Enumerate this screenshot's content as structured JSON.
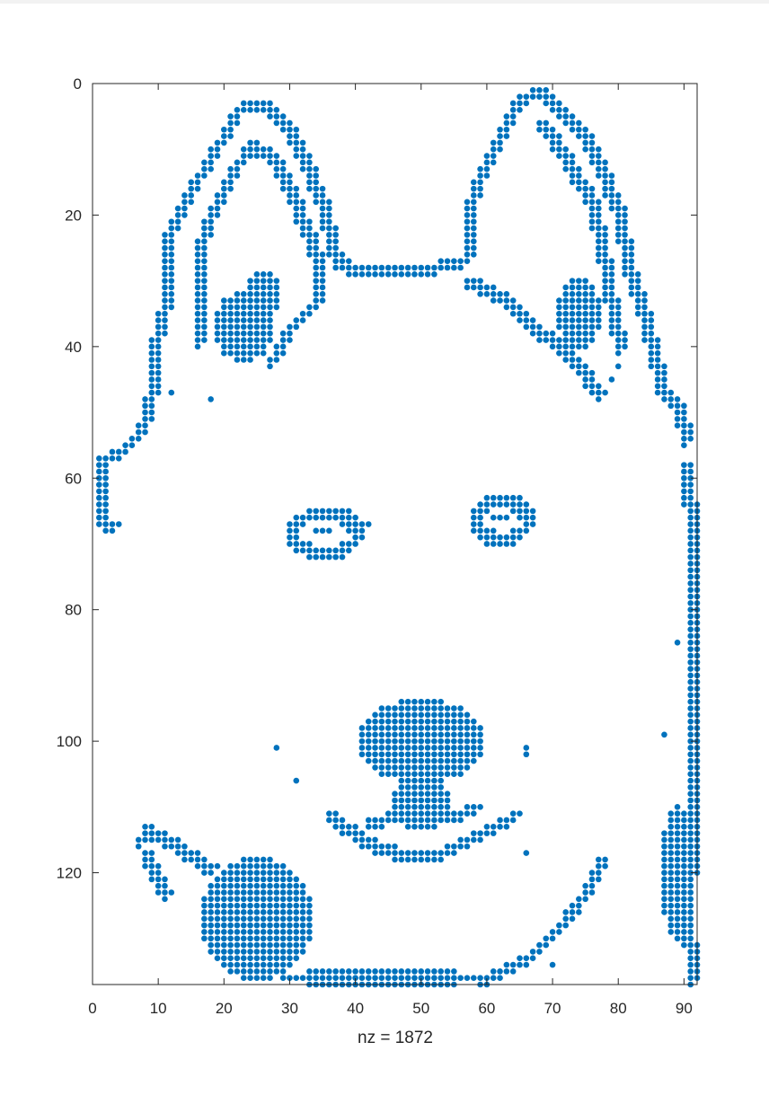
{
  "chart_data": {
    "type": "scatter",
    "plot": "spy",
    "title": "",
    "xlabel": "nz = 1872",
    "ylabel": "",
    "xlim": [
      0,
      92
    ],
    "ylim": [
      0,
      137
    ],
    "y_reversed": true,
    "x_ticks": [
      0,
      10,
      20,
      30,
      40,
      50,
      60,
      70,
      80,
      90
    ],
    "y_ticks": [
      0,
      20,
      40,
      60,
      80,
      100,
      120
    ],
    "x_tick_labels": [
      "0",
      "10",
      "20",
      "30",
      "40",
      "50",
      "60",
      "70",
      "80",
      "90"
    ],
    "y_tick_labels": [
      "0",
      "20",
      "40",
      "60",
      "80",
      "100",
      "120"
    ],
    "marker_color": "#0072BD",
    "axis_color": "#262626",
    "nz": 1872,
    "note": "Sparsity pattern forming a husky face; regions below are approximate outlines of the nonzero pattern (row = y, col = x).",
    "regions": [
      {
        "name": "left-ear-outer",
        "kind": "polyline",
        "points": [
          [
            1,
            57
          ],
          [
            5,
            55
          ],
          [
            8,
            51
          ],
          [
            9,
            44
          ],
          [
            9,
            40
          ],
          [
            11,
            32
          ],
          [
            11,
            24
          ],
          [
            13,
            19
          ],
          [
            16,
            14
          ],
          [
            19,
            9
          ],
          [
            21,
            5
          ],
          [
            23,
            3
          ],
          [
            26,
            3
          ],
          [
            29,
            6
          ],
          [
            31,
            10
          ],
          [
            33,
            14
          ],
          [
            35,
            19
          ],
          [
            36,
            24
          ],
          [
            37,
            27
          ]
        ]
      },
      {
        "name": "left-ear-inner",
        "kind": "polyline",
        "points": [
          [
            16,
            39
          ],
          [
            16,
            26
          ],
          [
            17,
            21
          ],
          [
            20,
            15
          ],
          [
            22,
            12
          ],
          [
            24,
            9
          ],
          [
            27,
            11
          ],
          [
            29,
            15
          ],
          [
            31,
            19
          ],
          [
            33,
            24
          ],
          [
            34,
            28
          ],
          [
            34,
            33
          ],
          [
            32,
            35
          ],
          [
            29,
            38
          ],
          [
            27,
            42
          ]
        ]
      },
      {
        "name": "left-ear-patch",
        "kind": "blob",
        "center": [
          23,
          37
        ],
        "radius": [
          4,
          5
        ]
      },
      {
        "name": "left-ear-patch-2",
        "kind": "blob",
        "center": [
          26,
          32
        ],
        "radius": [
          2,
          3
        ]
      },
      {
        "name": "head-top",
        "kind": "polyline",
        "points": [
          [
            37,
            27
          ],
          [
            40,
            28
          ],
          [
            45,
            28
          ],
          [
            50,
            28
          ],
          [
            55,
            27
          ],
          [
            57,
            26
          ]
        ]
      },
      {
        "name": "right-ear-outer",
        "kind": "polyline",
        "points": [
          [
            57,
            26
          ],
          [
            57,
            20
          ],
          [
            58,
            15
          ],
          [
            61,
            10
          ],
          [
            63,
            5
          ],
          [
            65,
            2
          ],
          [
            68,
            1
          ],
          [
            70,
            3
          ],
          [
            73,
            6
          ],
          [
            76,
            10
          ],
          [
            78,
            15
          ],
          [
            80,
            20
          ],
          [
            81,
            27
          ],
          [
            83,
            33
          ],
          [
            85,
            40
          ],
          [
            86,
            46
          ],
          [
            89,
            49
          ],
          [
            90,
            54
          ]
        ]
      },
      {
        "name": "right-ear-inner",
        "kind": "polyline",
        "points": [
          [
            57,
            30
          ],
          [
            62,
            32
          ],
          [
            66,
            36
          ],
          [
            70,
            39
          ],
          [
            73,
            42
          ],
          [
            77,
            47
          ]
        ]
      },
      {
        "name": "right-ear-inner-2",
        "kind": "polyline",
        "points": [
          [
            68,
            6
          ],
          [
            71,
            10
          ],
          [
            74,
            15
          ],
          [
            76,
            19
          ],
          [
            77,
            24
          ],
          [
            78,
            30
          ],
          [
            79,
            35
          ],
          [
            80,
            40
          ]
        ]
      },
      {
        "name": "right-ear-patch",
        "kind": "blob",
        "center": [
          74,
          35
        ],
        "radius": [
          3,
          5
        ]
      },
      {
        "name": "left-cheek-edge",
        "kind": "polyline",
        "points": [
          [
            1,
            57
          ],
          [
            1,
            61
          ],
          [
            1,
            66
          ],
          [
            3,
            67
          ]
        ]
      },
      {
        "name": "right-cheek-edge",
        "kind": "polyline",
        "points": [
          [
            90,
            58
          ],
          [
            91,
            70
          ],
          [
            91,
            85
          ],
          [
            91,
            100
          ],
          [
            91,
            115
          ],
          [
            90,
            125
          ],
          [
            91,
            136
          ]
        ]
      },
      {
        "name": "right-cheek-fill",
        "kind": "blob",
        "center": [
          89,
          120
        ],
        "radius": [
          2,
          10
        ]
      },
      {
        "name": "left-eye",
        "kind": "ring",
        "center": [
          35,
          68
        ],
        "radius": [
          5,
          3
        ]
      },
      {
        "name": "right-eye",
        "kind": "ring",
        "center": [
          62,
          66
        ],
        "radius": [
          4,
          3
        ]
      },
      {
        "name": "nose",
        "kind": "blob",
        "center": [
          50,
          100
        ],
        "radius": [
          9,
          6
        ]
      },
      {
        "name": "nose-stem",
        "kind": "blob",
        "center": [
          50,
          109
        ],
        "radius": [
          4,
          3
        ]
      },
      {
        "name": "mouth",
        "kind": "polyline",
        "points": [
          [
            36,
            111
          ],
          [
            40,
            114
          ],
          [
            44,
            116
          ],
          [
            48,
            117
          ],
          [
            52,
            117
          ],
          [
            56,
            115
          ],
          [
            60,
            113
          ],
          [
            64,
            111
          ]
        ]
      },
      {
        "name": "mouth-upper",
        "kind": "polyline",
        "points": [
          [
            42,
            112
          ],
          [
            46,
            111
          ],
          [
            50,
            112
          ],
          [
            54,
            111
          ],
          [
            58,
            110
          ]
        ]
      },
      {
        "name": "left-mouth-corner",
        "kind": "polyline",
        "points": [
          [
            7,
            115
          ],
          [
            8,
            113
          ],
          [
            10,
            114
          ],
          [
            13,
            116
          ],
          [
            16,
            118
          ],
          [
            18,
            119
          ]
        ]
      },
      {
        "name": "left-mouth-corner-2",
        "kind": "polyline",
        "points": [
          [
            8,
            117
          ],
          [
            9,
            120
          ],
          [
            11,
            123
          ]
        ]
      },
      {
        "name": "chin-left",
        "kind": "blob",
        "center": [
          25,
          127
        ],
        "radius": [
          8,
          9
        ]
      },
      {
        "name": "chin-bottom",
        "kind": "blob",
        "center": [
          44,
          136
        ],
        "radius": [
          15,
          1
        ]
      },
      {
        "name": "jaw-right",
        "kind": "polyline",
        "points": [
          [
            59,
            136
          ],
          [
            64,
            134
          ],
          [
            68,
            131
          ],
          [
            71,
            128
          ],
          [
            74,
            124
          ],
          [
            76,
            121
          ],
          [
            77,
            118
          ]
        ]
      },
      {
        "name": "misc-dots",
        "kind": "points",
        "points": [
          [
            12,
            47
          ],
          [
            18,
            48
          ],
          [
            28,
            101
          ],
          [
            31,
            106
          ],
          [
            42,
            67
          ],
          [
            66,
            117
          ],
          [
            70,
            134
          ],
          [
            72,
            126
          ],
          [
            89,
            85
          ],
          [
            87,
            99
          ],
          [
            66,
            101
          ],
          [
            66,
            102
          ],
          [
            79,
            45
          ],
          [
            80,
            43
          ]
        ]
      }
    ]
  }
}
